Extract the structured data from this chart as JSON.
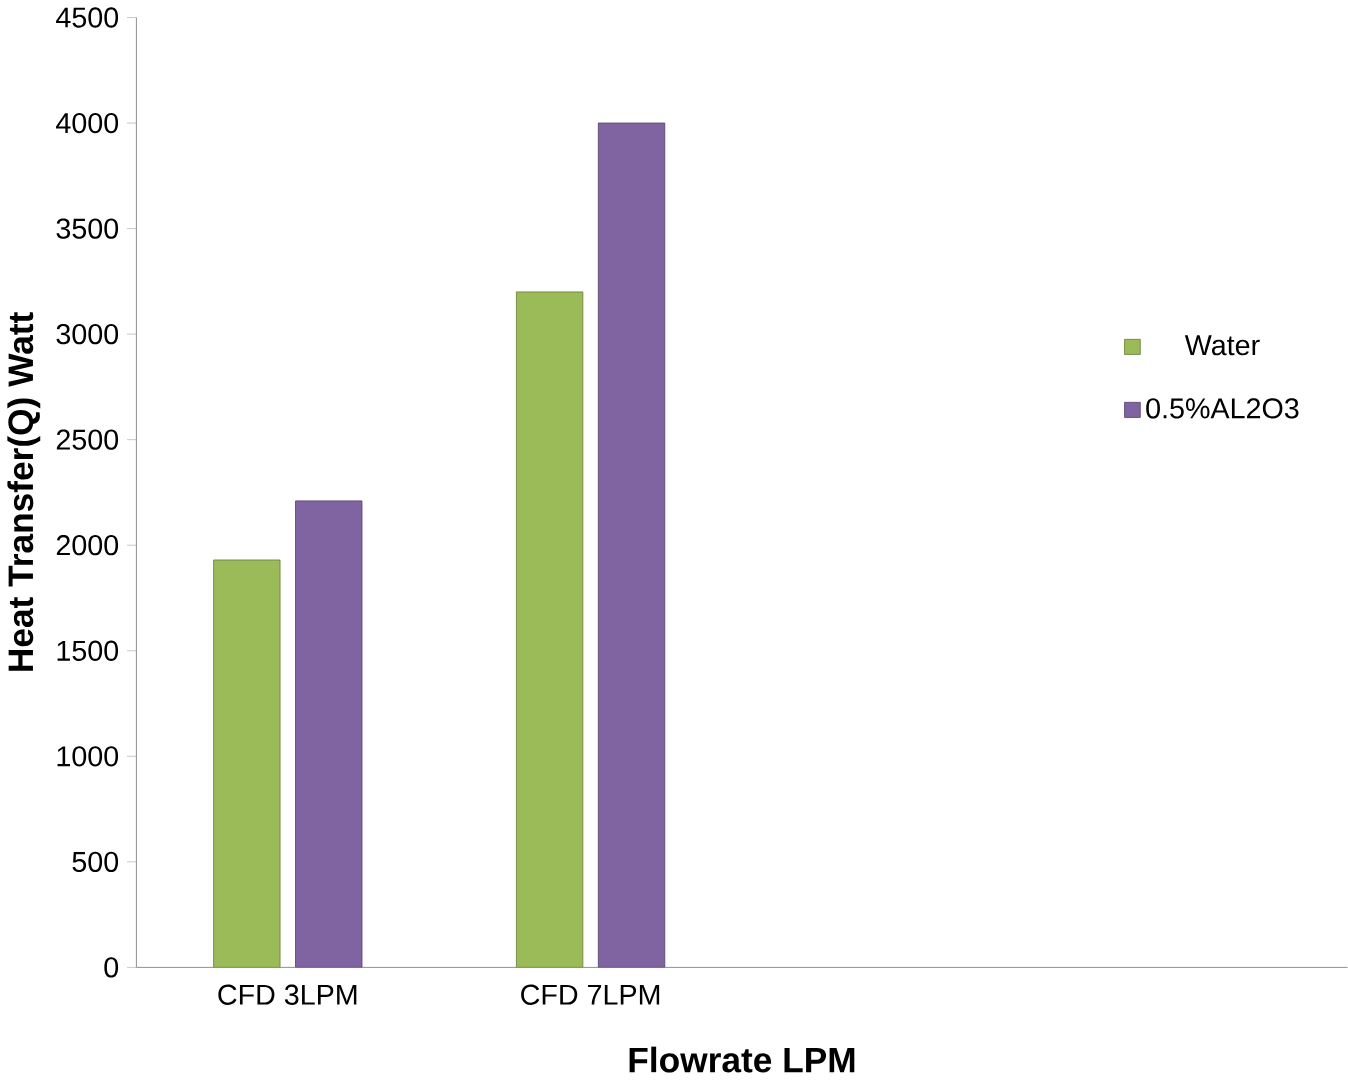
{
  "chart_data": {
    "type": "bar",
    "xlabel": "Flowrate LPM",
    "ylabel": "Heat  Transfer(Q) Watt",
    "categories": [
      "CFD 3LPM",
      "CFD 7LPM",
      null,
      null
    ],
    "series": [
      {
        "name": "Water",
        "color": "#9bbb59",
        "values": [
          1930,
          3200,
          null,
          null
        ]
      },
      {
        "name": "0.5%AL2O3",
        "color": "#8064a2",
        "values": [
          2210,
          4000,
          null,
          null
        ]
      }
    ],
    "ylim": [
      0,
      4500
    ],
    "yticks": [
      0,
      500,
      1000,
      1500,
      2000,
      2500,
      3000,
      3500,
      4000,
      4500
    ],
    "grid": false,
    "legend": "right"
  }
}
